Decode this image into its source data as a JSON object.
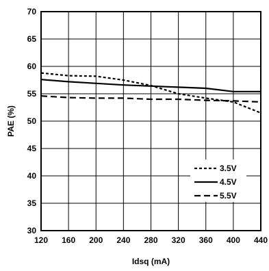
{
  "chart_data": {
    "type": "line",
    "xlabel": "Idsq (mA)",
    "ylabel": "PAE (%)",
    "xlim": [
      120,
      440
    ],
    "ylim": [
      30,
      70
    ],
    "x_ticks": [
      120,
      160,
      200,
      240,
      280,
      320,
      360,
      400,
      440
    ],
    "y_ticks": [
      30,
      35,
      40,
      45,
      50,
      55,
      60,
      65,
      70
    ],
    "grid": true,
    "legend_position": "bottom-right",
    "series": [
      {
        "name": "3.5V",
        "dash": "short-dash",
        "x": [
          120,
          160,
          200,
          240,
          280,
          320,
          360,
          400,
          440
        ],
        "y": [
          58.8,
          58.3,
          58.2,
          57.5,
          56.5,
          55.0,
          54.2,
          53.5,
          51.5
        ]
      },
      {
        "name": "4.5V",
        "dash": "solid",
        "x": [
          120,
          160,
          200,
          240,
          280,
          320,
          360,
          400,
          440
        ],
        "y": [
          57.6,
          57.2,
          56.9,
          56.6,
          56.4,
          56.2,
          56.0,
          55.4,
          55.4
        ]
      },
      {
        "name": "5.5V",
        "dash": "long-dash",
        "x": [
          120,
          160,
          200,
          240,
          280,
          320,
          360,
          400,
          440
        ],
        "y": [
          54.6,
          54.3,
          54.2,
          54.2,
          54.0,
          54.0,
          53.8,
          53.7,
          53.5
        ]
      }
    ]
  }
}
